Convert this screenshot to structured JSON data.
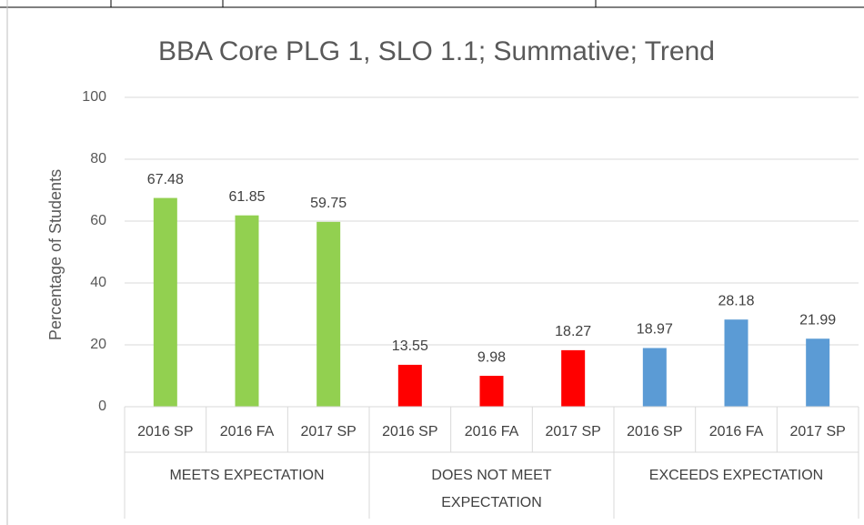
{
  "chart_data": {
    "type": "bar",
    "title": "BBA Core PLG 1, SLO 1.1; Summative; Trend",
    "y_label": "Percentage of Students",
    "groups": [
      {
        "name": "MEETS EXPECTATION",
        "color": "#92d050",
        "categories": [
          "2016 SP",
          "2016 FA",
          "2017 SP"
        ],
        "values": [
          67.48,
          61.85,
          59.75
        ]
      },
      {
        "name": "DOES NOT MEET EXPECTATION",
        "color": "#ff0000",
        "categories": [
          "2016 SP",
          "2016 FA",
          "2017 SP"
        ],
        "values": [
          13.55,
          9.98,
          18.27
        ]
      },
      {
        "name": "EXCEEDS EXPECTATION",
        "color": "#5b9bd5",
        "categories": [
          "2016 SP",
          "2016 FA",
          "2017 SP"
        ],
        "values": [
          18.97,
          28.18,
          21.99
        ]
      }
    ],
    "ylim": [
      0,
      100
    ],
    "yticks": [
      0,
      20,
      40,
      60,
      80,
      100
    ],
    "grid": true
  }
}
